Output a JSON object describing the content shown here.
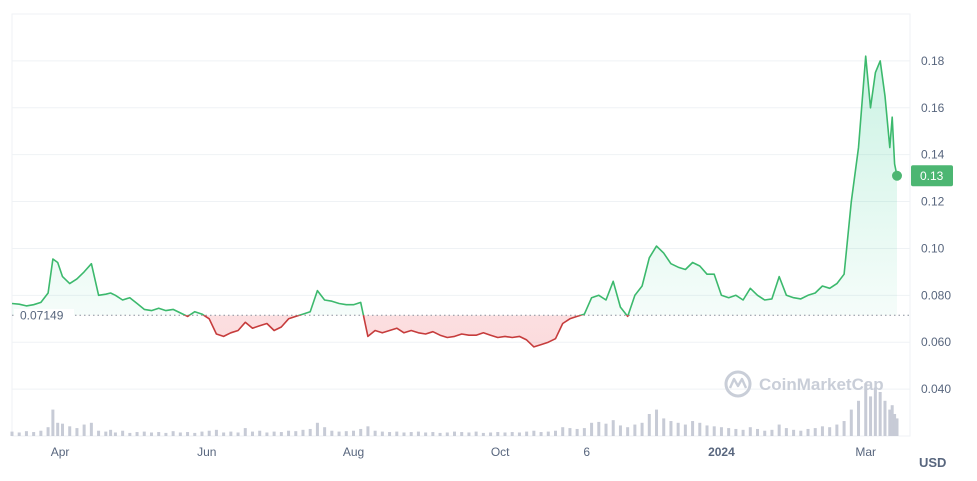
{
  "chart_data": {
    "type": "line",
    "currency": "USD",
    "watermark": "CoinMarketCap",
    "baseline": {
      "value": 0.07149,
      "label": "0.07149"
    },
    "current_price": {
      "value": 0.131,
      "label": "0.13"
    },
    "ylim": [
      0.02,
      0.2
    ],
    "yticks": [
      {
        "value": 0.04,
        "label": "0.040"
      },
      {
        "value": 0.06,
        "label": "0.060"
      },
      {
        "value": 0.08,
        "label": "0.080"
      },
      {
        "value": 0.1,
        "label": "0.10"
      },
      {
        "value": 0.12,
        "label": "0.12"
      },
      {
        "value": 0.14,
        "label": "0.14"
      },
      {
        "value": 0.16,
        "label": "0.16"
      },
      {
        "value": 0.18,
        "label": "0.18"
      }
    ],
    "xlim": [
      "2023-03-12",
      "2024-03-14"
    ],
    "xticks": [
      {
        "date": "2023-04-01",
        "label": "Apr",
        "bold": false
      },
      {
        "date": "2023-06-01",
        "label": "Jun",
        "bold": false
      },
      {
        "date": "2023-08-01",
        "label": "Aug",
        "bold": false
      },
      {
        "date": "2023-10-01",
        "label": "Oct",
        "bold": false
      },
      {
        "date": "2023-11-06",
        "label": "6",
        "bold": false
      },
      {
        "date": "2024-01-01",
        "label": "2024",
        "bold": true
      },
      {
        "date": "2024-03-01",
        "label": "Mar",
        "bold": false
      }
    ],
    "colors": {
      "up": "#16c784",
      "up_line": "#3cb96d",
      "down": "#ea3943",
      "down_line": "#c63c3c",
      "volume": "#c7cbd6",
      "grid": "#eff2f5",
      "badge": "#4cb672"
    },
    "grid": true,
    "series": [
      {
        "x": [
          "2023-03-12",
          "2023-03-15",
          "2023-03-18",
          "2023-03-21",
          "2023-03-24",
          "2023-03-27",
          "2023-03-29",
          "2023-03-31",
          "2023-04-02",
          "2023-04-05",
          "2023-04-08",
          "2023-04-11",
          "2023-04-14",
          "2023-04-17",
          "2023-04-20",
          "2023-04-22",
          "2023-04-24",
          "2023-04-27",
          "2023-04-30",
          "2023-05-03",
          "2023-05-06",
          "2023-05-09",
          "2023-05-12",
          "2023-05-15",
          "2023-05-18",
          "2023-05-21",
          "2023-05-24",
          "2023-05-27",
          "2023-05-30",
          "2023-06-02",
          "2023-06-05",
          "2023-06-08",
          "2023-06-11",
          "2023-06-14",
          "2023-06-17",
          "2023-06-20",
          "2023-06-23",
          "2023-06-26",
          "2023-06-29",
          "2023-07-02",
          "2023-07-05",
          "2023-07-08",
          "2023-07-11",
          "2023-07-14",
          "2023-07-17",
          "2023-07-20",
          "2023-07-23",
          "2023-07-26",
          "2023-07-29",
          "2023-08-01",
          "2023-08-04",
          "2023-08-07",
          "2023-08-10",
          "2023-08-13",
          "2023-08-16",
          "2023-08-19",
          "2023-08-22",
          "2023-08-25",
          "2023-08-28",
          "2023-08-31",
          "2023-09-03",
          "2023-09-06",
          "2023-09-09",
          "2023-09-12",
          "2023-09-15",
          "2023-09-18",
          "2023-09-21",
          "2023-09-24",
          "2023-09-27",
          "2023-09-30",
          "2023-10-03",
          "2023-10-06",
          "2023-10-09",
          "2023-10-12",
          "2023-10-15",
          "2023-10-18",
          "2023-10-21",
          "2023-10-24",
          "2023-10-27",
          "2023-10-30",
          "2023-11-02",
          "2023-11-05",
          "2023-11-08",
          "2023-11-11",
          "2023-11-14",
          "2023-11-17",
          "2023-11-20",
          "2023-11-23",
          "2023-11-26",
          "2023-11-29",
          "2023-12-02",
          "2023-12-05",
          "2023-12-08",
          "2023-12-11",
          "2023-12-14",
          "2023-12-17",
          "2023-12-20",
          "2023-12-23",
          "2023-12-26",
          "2023-12-29",
          "2024-01-01",
          "2024-01-04",
          "2024-01-07",
          "2024-01-10",
          "2024-01-13",
          "2024-01-16",
          "2024-01-19",
          "2024-01-22",
          "2024-01-25",
          "2024-01-28",
          "2024-01-31",
          "2024-02-03",
          "2024-02-06",
          "2024-02-09",
          "2024-02-12",
          "2024-02-15",
          "2024-02-18",
          "2024-02-21",
          "2024-02-24",
          "2024-02-27",
          "2024-03-01",
          "2024-03-03",
          "2024-03-05",
          "2024-03-07",
          "2024-03-09",
          "2024-03-11",
          "2024-03-12",
          "2024-03-13",
          "2024-03-14"
        ],
        "y": [
          0.0765,
          0.0762,
          0.0755,
          0.076,
          0.077,
          0.081,
          0.0955,
          0.094,
          0.088,
          0.085,
          0.087,
          0.09,
          0.0935,
          0.08,
          0.0805,
          0.081,
          0.08,
          0.078,
          0.079,
          0.0765,
          0.074,
          0.0735,
          0.0745,
          0.0735,
          0.074,
          0.0725,
          0.071,
          0.073,
          0.072,
          0.07,
          0.0635,
          0.0625,
          0.064,
          0.065,
          0.0685,
          0.066,
          0.067,
          0.068,
          0.065,
          0.0665,
          0.07,
          0.071,
          0.072,
          0.073,
          0.082,
          0.078,
          0.0775,
          0.0765,
          0.076,
          0.076,
          0.077,
          0.0625,
          0.065,
          0.064,
          0.065,
          0.066,
          0.064,
          0.065,
          0.064,
          0.0635,
          0.0645,
          0.063,
          0.062,
          0.0625,
          0.0635,
          0.063,
          0.063,
          0.064,
          0.063,
          0.062,
          0.0625,
          0.062,
          0.0625,
          0.061,
          0.058,
          0.059,
          0.06,
          0.0615,
          0.068,
          0.07,
          0.071,
          0.072,
          0.079,
          0.08,
          0.078,
          0.086,
          0.075,
          0.071,
          0.08,
          0.084,
          0.096,
          0.101,
          0.098,
          0.0935,
          0.092,
          0.091,
          0.094,
          0.0925,
          0.089,
          0.089,
          0.08,
          0.079,
          0.08,
          0.078,
          0.083,
          0.08,
          0.078,
          0.0785,
          0.088,
          0.08,
          0.079,
          0.0785,
          0.08,
          0.081,
          0.084,
          0.083,
          0.085,
          0.089,
          0.12,
          0.143,
          0.182,
          0.16,
          0.175,
          0.18,
          0.165,
          0.143,
          0.156,
          0.136,
          0.131
        ]
      }
    ],
    "volume": [
      0.01,
      0.008,
      0.011,
      0.009,
      0.012,
      0.02,
      0.06,
      0.03,
      0.028,
      0.022,
      0.018,
      0.026,
      0.03,
      0.012,
      0.01,
      0.014,
      0.008,
      0.012,
      0.007,
      0.009,
      0.01,
      0.008,
      0.009,
      0.007,
      0.011,
      0.008,
      0.009,
      0.007,
      0.01,
      0.012,
      0.014,
      0.008,
      0.01,
      0.008,
      0.018,
      0.01,
      0.012,
      0.008,
      0.01,
      0.009,
      0.012,
      0.011,
      0.014,
      0.016,
      0.03,
      0.02,
      0.012,
      0.01,
      0.011,
      0.012,
      0.016,
      0.022,
      0.012,
      0.01,
      0.009,
      0.01,
      0.008,
      0.009,
      0.01,
      0.008,
      0.009,
      0.007,
      0.008,
      0.01,
      0.009,
      0.008,
      0.01,
      0.007,
      0.008,
      0.009,
      0.008,
      0.009,
      0.008,
      0.01,
      0.012,
      0.009,
      0.01,
      0.012,
      0.02,
      0.018,
      0.016,
      0.018,
      0.03,
      0.032,
      0.028,
      0.036,
      0.024,
      0.02,
      0.026,
      0.03,
      0.05,
      0.06,
      0.04,
      0.034,
      0.03,
      0.026,
      0.034,
      0.03,
      0.024,
      0.022,
      0.02,
      0.018,
      0.016,
      0.014,
      0.02,
      0.016,
      0.012,
      0.014,
      0.026,
      0.018,
      0.014,
      0.012,
      0.016,
      0.018,
      0.022,
      0.02,
      0.026,
      0.034,
      0.06,
      0.08,
      0.12,
      0.09,
      0.11,
      0.1,
      0.08,
      0.06,
      0.07,
      0.05,
      0.04
    ]
  }
}
